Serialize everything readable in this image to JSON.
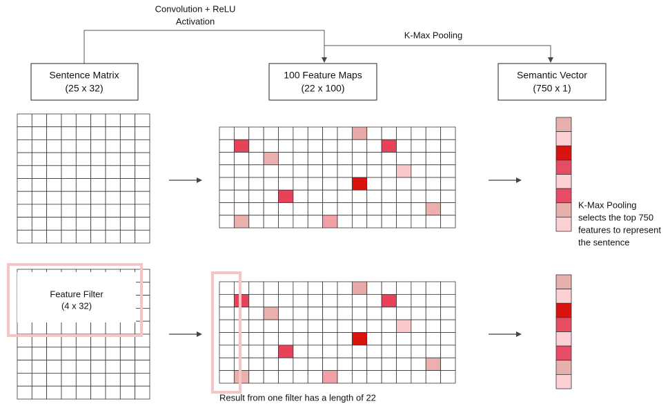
{
  "top_connector": {
    "label_lines": [
      "Convolution + ReLU",
      "Activation"
    ]
  },
  "pooling_connector": {
    "label": "K-Max Pooling"
  },
  "boxes": [
    {
      "title": "Sentence Matrix",
      "size": "(25 x 32)"
    },
    {
      "title": "100 Feature Maps",
      "size": "(22 x 100)"
    },
    {
      "title": "Semantic Vector",
      "size": "(750 x 1)"
    }
  ],
  "filter": {
    "title": "Feature Filter",
    "size": "(4 x 32)"
  },
  "annotation": {
    "lines": [
      "K-Max Pooling",
      "selects the top 750",
      "features to represent",
      "the sentence"
    ]
  },
  "caption": "Result from one filter has a length of 22"
}
